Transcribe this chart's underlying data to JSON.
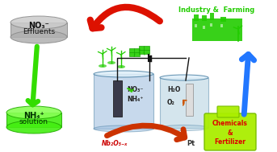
{
  "bg_color": "#ffffff",
  "industry_text": "Industry &  Farming",
  "industry_color": "#22cc00",
  "no3_disk_text1": "NO₃⁻",
  "no3_disk_text2": "Effluents",
  "nh4_disk_text1": "NH₄⁺",
  "nh4_disk_text2": "solution",
  "disk_gray_fc": "#b0b0b0",
  "disk_gray_ec": "#888888",
  "disk_gray_top": "#cccccc",
  "disk_green_fc": "#44ee11",
  "disk_green_ec": "#22aa00",
  "disk_green_top": "#88ff55",
  "green_arrow_color": "#33dd00",
  "red_arrow_color": "#dd1100",
  "orange_arrow_color": "#cc3300",
  "blue_arrow_color": "#2277ff",
  "cyl1_fc": "#99bbdd",
  "cyl1_ec": "#5588aa",
  "cyl2_fc": "#aaccdd",
  "cyl2_ec": "#5588aa",
  "electrode_dark": "#3a3a4a",
  "electrode_light": "#dddddd",
  "wire_color": "#111111",
  "turbine_color": "#22cc00",
  "solar_color": "#22cc00",
  "nb_label": "Nb₂O₅₋ₓ",
  "nb_color": "#cc0000",
  "pt_label": "Pt",
  "no3_cell": "NO₃⁻",
  "nh4_cell": "NH₄⁺",
  "h2o_cell": "H₂O",
  "o2_cell": "O₂",
  "chem_text": "Chemicals\n&\nFertilizer",
  "chem_color": "#dd0000",
  "chem_fc": "#aaee00",
  "chem_ec": "#77bb00"
}
